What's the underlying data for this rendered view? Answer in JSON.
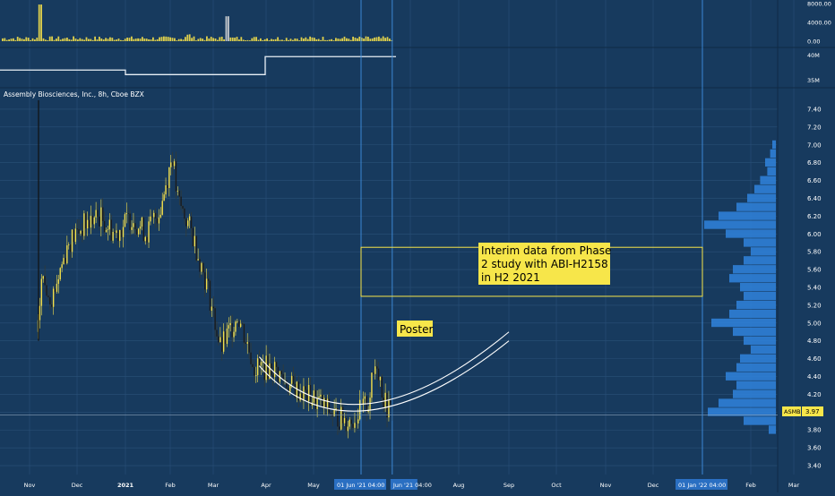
{
  "title": "Assembly Biosciences, Inc., 8h, Cboe BZX",
  "ticker_label": "ASMB",
  "last_price_label": "3.97",
  "colors": {
    "background": "#173a5e",
    "grid": "#2a5078",
    "candle": "#f5e04a",
    "candle_dark": "#1c1c1c",
    "volume_profile": "#2f7fd6",
    "annotation_fill": "#f7e64a",
    "annotation_border": "#f7e64a",
    "axis_text": "#ffffff",
    "vline": "#3f8fe0",
    "price_line": "#8aa0b8"
  },
  "volume_panel": {
    "ticks": [
      "8000.00",
      "4000.00",
      "0.00"
    ],
    "tick_values": [
      8000,
      4000,
      0
    ]
  },
  "indicator_panel": {
    "ticks": [
      "40M",
      "35M"
    ],
    "tick_values": [
      40,
      35
    ],
    "levels": [
      {
        "from": "Nov",
        "to": "Jan",
        "value": 37.0
      },
      {
        "from": "Jan",
        "to": "Apr",
        "value": 36.1
      },
      {
        "from": "Apr",
        "to": "Jun",
        "value": 39.7
      }
    ]
  },
  "annotations": {
    "box_text_lines": [
      "Interim data from Phase",
      "2 study with ABI-H2158",
      "in H2 2021"
    ],
    "poster": "Poster"
  },
  "x_axis": {
    "ticks": [
      "Nov",
      "Dec",
      "2021",
      "Feb",
      "Mar",
      "Apr",
      "May",
      "Jun",
      "Aug",
      "Sep",
      "Oct",
      "Nov",
      "Dec",
      "Feb",
      "Mar"
    ],
    "crosshair_labels": [
      "01 Jun '21 04:00",
      "Jun '21 04:00",
      "01 Jan '22 04:00"
    ]
  },
  "chart_data": {
    "type": "candlestick",
    "y_ticks": [
      "7.40",
      "7.20",
      "7.00",
      "6.80",
      "6.60",
      "6.40",
      "6.20",
      "6.00",
      "5.80",
      "5.60",
      "5.40",
      "5.20",
      "5.00",
      "4.80",
      "4.60",
      "4.40",
      "4.20",
      "4.00",
      "3.80",
      "3.60",
      "3.40"
    ],
    "ylim": [
      3.3,
      7.5
    ],
    "x_months": [
      "2020-11",
      "2020-12",
      "2021-01",
      "2021-02",
      "2021-03",
      "2021-04",
      "2021-05",
      "2021-06",
      "2021-07",
      "2021-08",
      "2021-09",
      "2021-10",
      "2021-11",
      "2021-12",
      "2022-01",
      "2022-02",
      "2022-03"
    ],
    "price_path": [
      {
        "date": "2020-11-06",
        "price": 4.9
      },
      {
        "date": "2020-11-08",
        "price": 5.5
      },
      {
        "date": "2020-11-15",
        "price": 5.3
      },
      {
        "date": "2020-11-25",
        "price": 5.9
      },
      {
        "date": "2020-12-05",
        "price": 6.1
      },
      {
        "date": "2020-12-15",
        "price": 6.2
      },
      {
        "date": "2020-12-25",
        "price": 6.0
      },
      {
        "date": "2021-01-05",
        "price": 6.2
      },
      {
        "date": "2021-01-15",
        "price": 6.0
      },
      {
        "date": "2021-01-25",
        "price": 6.3
      },
      {
        "date": "2021-02-02",
        "price": 6.9
      },
      {
        "date": "2021-02-05",
        "price": 6.4
      },
      {
        "date": "2021-02-15",
        "price": 6.0
      },
      {
        "date": "2021-02-25",
        "price": 5.4
      },
      {
        "date": "2021-03-05",
        "price": 4.7
      },
      {
        "date": "2021-03-15",
        "price": 5.1
      },
      {
        "date": "2021-03-25",
        "price": 4.5
      },
      {
        "date": "2021-04-05",
        "price": 4.5
      },
      {
        "date": "2021-04-15",
        "price": 4.3
      },
      {
        "date": "2021-04-25",
        "price": 4.2
      },
      {
        "date": "2021-05-05",
        "price": 4.1
      },
      {
        "date": "2021-05-15",
        "price": 3.95
      },
      {
        "date": "2021-05-25",
        "price": 3.9
      },
      {
        "date": "2021-06-05",
        "price": 4.1
      },
      {
        "date": "2021-06-10",
        "price": 4.6
      },
      {
        "date": "2021-06-15",
        "price": 4.1
      },
      {
        "date": "2021-06-20",
        "price": 3.97
      }
    ],
    "last_price": 3.97,
    "annotation_box": {
      "from": "2021-06-01",
      "to": "2022-01-01",
      "y_top": 5.85,
      "y_bottom": 5.3
    },
    "trend_arcs": [
      {
        "from": "2021-03-28",
        "through": "2021-05-25",
        "to": "2021-09-01",
        "low": 3.83,
        "end": 4.9
      },
      {
        "from": "2021-03-28",
        "through": "2021-05-25",
        "to": "2021-09-01",
        "low": 3.78,
        "end": 4.8
      }
    ],
    "volume_profile": [
      {
        "price": 7.0,
        "volume": 0.05
      },
      {
        "price": 6.9,
        "volume": 0.08
      },
      {
        "price": 6.8,
        "volume": 0.15
      },
      {
        "price": 6.7,
        "volume": 0.12
      },
      {
        "price": 6.6,
        "volume": 0.22
      },
      {
        "price": 6.5,
        "volume": 0.3
      },
      {
        "price": 6.4,
        "volume": 0.4
      },
      {
        "price": 6.3,
        "volume": 0.55
      },
      {
        "price": 6.2,
        "volume": 0.8
      },
      {
        "price": 6.1,
        "volume": 1.0
      },
      {
        "price": 6.0,
        "volume": 0.7
      },
      {
        "price": 5.9,
        "volume": 0.45
      },
      {
        "price": 5.8,
        "volume": 0.35
      },
      {
        "price": 5.7,
        "volume": 0.45
      },
      {
        "price": 5.6,
        "volume": 0.6
      },
      {
        "price": 5.5,
        "volume": 0.65
      },
      {
        "price": 5.4,
        "volume": 0.5
      },
      {
        "price": 5.3,
        "volume": 0.45
      },
      {
        "price": 5.2,
        "volume": 0.55
      },
      {
        "price": 5.1,
        "volume": 0.65
      },
      {
        "price": 5.0,
        "volume": 0.9
      },
      {
        "price": 4.9,
        "volume": 0.6
      },
      {
        "price": 4.8,
        "volume": 0.45
      },
      {
        "price": 4.7,
        "volume": 0.35
      },
      {
        "price": 4.6,
        "volume": 0.5
      },
      {
        "price": 4.5,
        "volume": 0.55
      },
      {
        "price": 4.4,
        "volume": 0.7
      },
      {
        "price": 4.3,
        "volume": 0.55
      },
      {
        "price": 4.2,
        "volume": 0.6
      },
      {
        "price": 4.1,
        "volume": 0.8
      },
      {
        "price": 4.0,
        "volume": 0.95
      },
      {
        "price": 3.9,
        "volume": 0.45
      },
      {
        "price": 3.8,
        "volume": 0.1
      }
    ]
  }
}
